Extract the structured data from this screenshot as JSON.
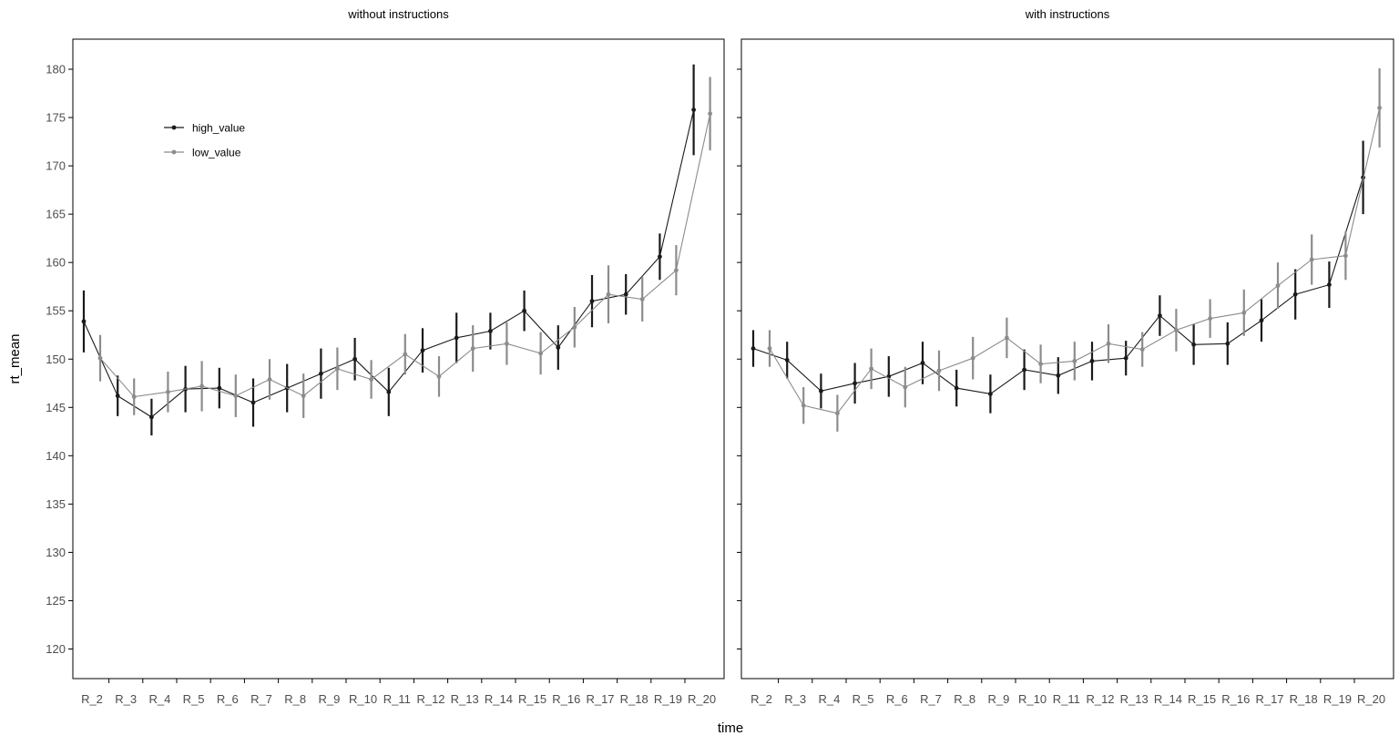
{
  "chart_data": {
    "type": "line",
    "xlabel": "time",
    "ylabel": "rt_mean",
    "ylim": [
      117,
      183
    ],
    "yticks": [
      120,
      125,
      130,
      135,
      140,
      145,
      150,
      155,
      160,
      165,
      170,
      175,
      180
    ],
    "grid": false,
    "legend_position": "top-left",
    "categories": [
      "R_2",
      "R_3",
      "R_4",
      "R_5",
      "R_6",
      "R_7",
      "R_8",
      "R_9",
      "R_10",
      "R_11",
      "R_12",
      "R_13",
      "R_14",
      "R_15",
      "R_16",
      "R_17",
      "R_18",
      "R_19",
      "R_20"
    ],
    "colors": {
      "high_value": "#1a1a1a",
      "low_value": "#8c8c8c"
    },
    "legend": [
      "high_value",
      "low_value"
    ],
    "panels": [
      {
        "title": "without instructions",
        "series": [
          {
            "name": "high_value",
            "values": [
              153.9,
              146.2,
              144.0,
              146.9,
              147.0,
              145.5,
              147.0,
              148.5,
              150.0,
              146.6,
              150.9,
              152.2,
              152.9,
              155.0,
              151.2,
              156.0,
              156.7,
              160.6,
              175.8
            ],
            "err": [
              3.2,
              2.1,
              1.9,
              2.4,
              2.1,
              2.5,
              2.5,
              2.6,
              2.2,
              2.5,
              2.3,
              2.6,
              1.9,
              2.1,
              2.3,
              2.7,
              2.1,
              2.4,
              4.7
            ]
          },
          {
            "name": "low_value",
            "values": [
              150.1,
              146.1,
              146.6,
              147.2,
              146.2,
              147.9,
              146.2,
              149.0,
              147.9,
              150.5,
              148.2,
              151.1,
              151.6,
              150.6,
              153.3,
              156.7,
              156.2,
              159.2,
              175.4
            ],
            "err": [
              2.4,
              1.9,
              2.1,
              2.6,
              2.2,
              2.1,
              2.3,
              2.2,
              2.0,
              2.1,
              2.1,
              2.4,
              2.2,
              2.2,
              2.1,
              3.0,
              2.3,
              2.6,
              3.8
            ]
          }
        ]
      },
      {
        "title": "with instructions",
        "series": [
          {
            "name": "high_value",
            "values": [
              151.1,
              149.9,
              146.7,
              147.5,
              148.2,
              149.6,
              147.0,
              146.4,
              148.9,
              148.3,
              149.8,
              150.1,
              154.5,
              151.5,
              151.6,
              154.0,
              156.7,
              157.7,
              168.8
            ],
            "err": [
              1.9,
              1.9,
              1.8,
              2.1,
              2.1,
              2.2,
              1.9,
              2.0,
              2.1,
              1.9,
              2.0,
              1.8,
              2.1,
              2.1,
              2.2,
              2.2,
              2.6,
              2.4,
              3.8
            ]
          },
          {
            "name": "low_value",
            "values": [
              151.1,
              145.2,
              144.4,
              149.0,
              147.1,
              148.8,
              150.1,
              152.2,
              149.5,
              149.8,
              151.6,
              151.0,
              153.0,
              154.2,
              154.8,
              157.6,
              160.3,
              160.7,
              176.0
            ],
            "err": [
              1.9,
              1.9,
              1.9,
              2.1,
              2.1,
              2.1,
              2.2,
              2.1,
              2.0,
              2.0,
              2.0,
              1.8,
              2.2,
              2.0,
              2.4,
              2.4,
              2.6,
              2.5,
              4.1
            ]
          }
        ]
      }
    ]
  }
}
